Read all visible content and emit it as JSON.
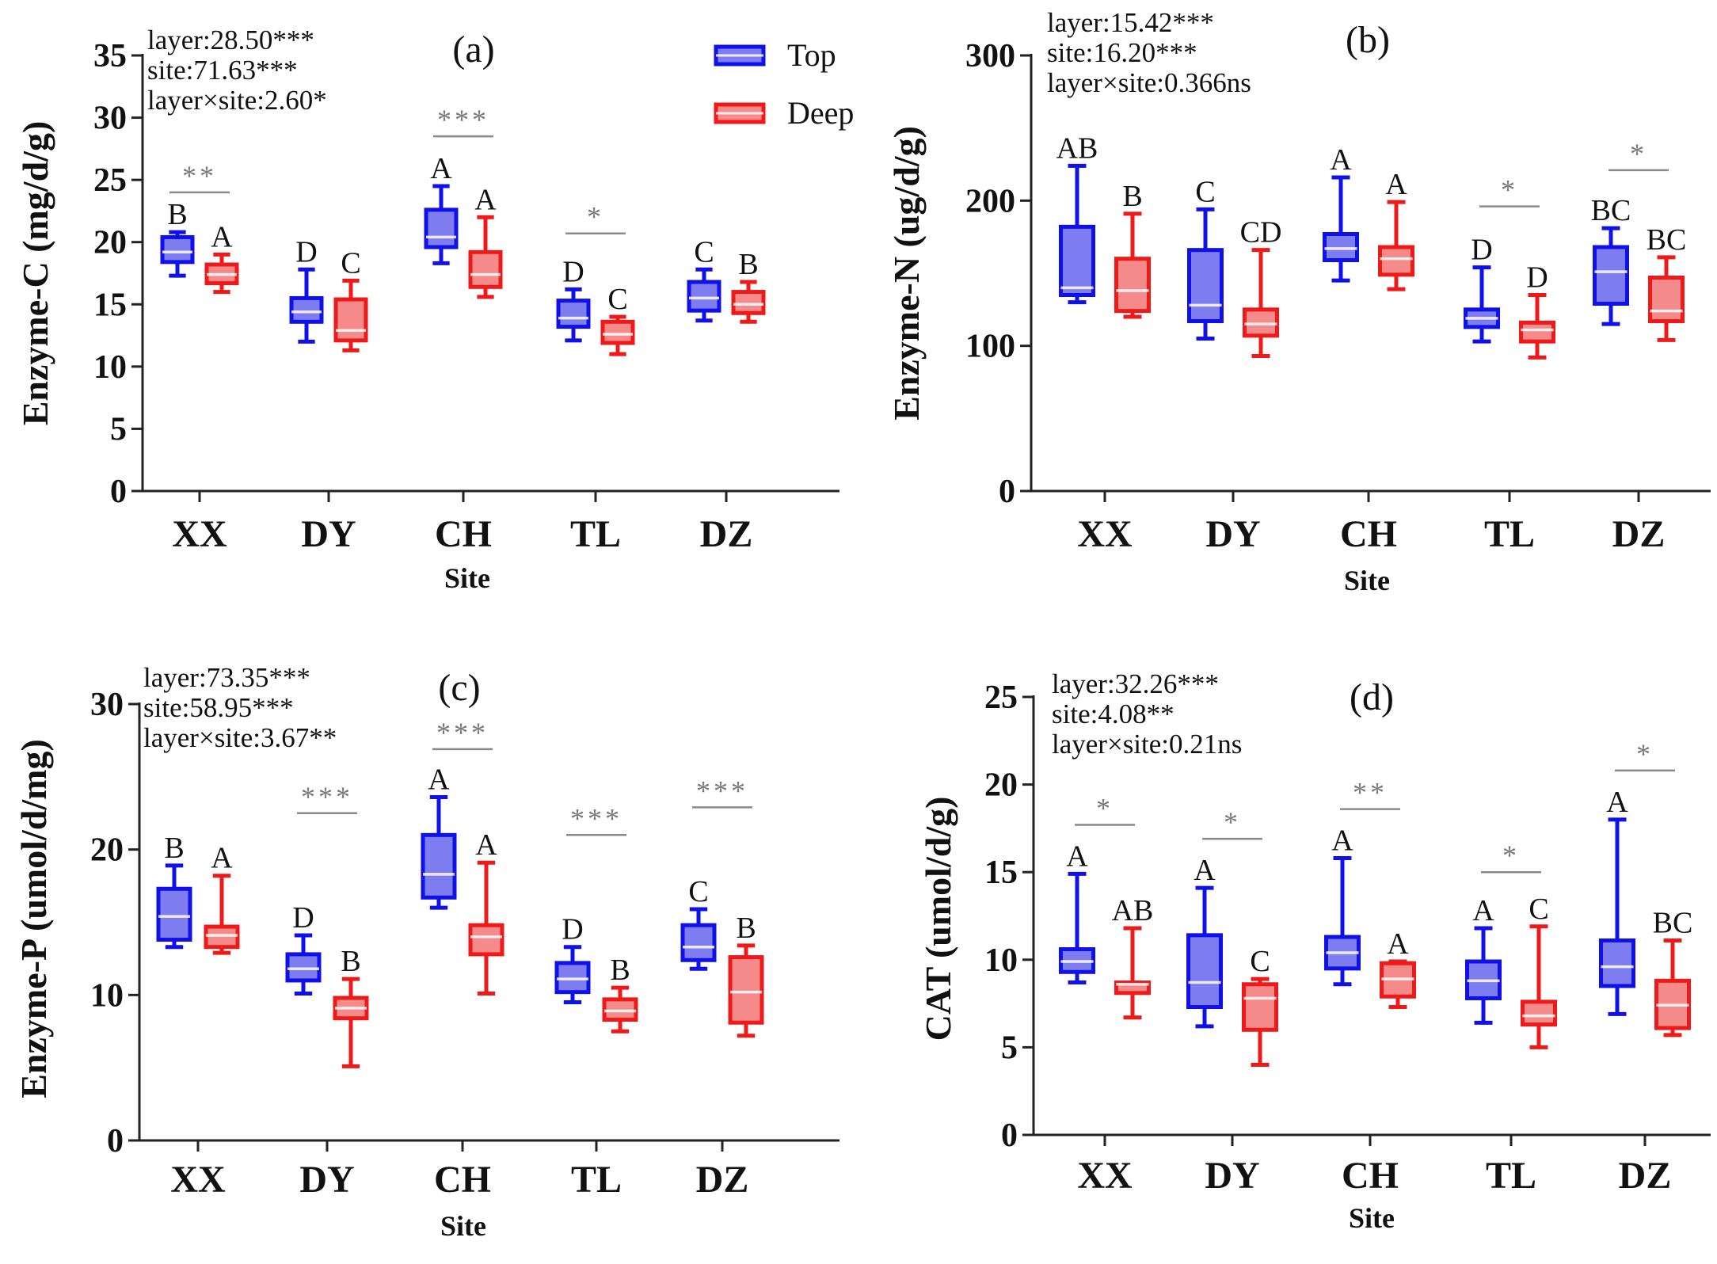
{
  "colors": {
    "top": "#1010e8",
    "top_fill": "#7d7df0",
    "deep": "#ee1a1a",
    "deep_fill": "#f48a8a",
    "sig": "#8a8a8a",
    "axis": "#222222"
  },
  "legend": [
    {
      "name": "Top",
      "color": "#1010e8"
    },
    {
      "name": "Deep",
      "color": "#ee1a1a"
    }
  ],
  "chart_data": [
    {
      "type": "box",
      "panel": "(a)",
      "ylabel": "Enzyme-C (mg/d/g)",
      "xlabel": "Site",
      "ylim": [
        0,
        35
      ],
      "yticks": [
        0,
        5,
        10,
        15,
        20,
        25,
        30,
        35
      ],
      "categories": [
        "XX",
        "DY",
        "CH",
        "TL",
        "DZ"
      ],
      "stats": [
        "layer:28.50***",
        "site:71.63***",
        "layer×site:2.60*"
      ],
      "series": [
        {
          "name": "Top",
          "boxes": [
            {
              "min": 17.3,
              "q1": 18.4,
              "median": 19.2,
              "q3": 20.4,
              "max": 20.8,
              "letter": "B"
            },
            {
              "min": 12.0,
              "q1": 13.6,
              "median": 14.4,
              "q3": 15.5,
              "max": 17.8,
              "letter": "D"
            },
            {
              "min": 18.3,
              "q1": 19.6,
              "median": 20.4,
              "q3": 22.6,
              "max": 24.5,
              "letter": "A"
            },
            {
              "min": 12.1,
              "q1": 13.2,
              "median": 13.9,
              "q3": 15.3,
              "max": 16.2,
              "letter": "D"
            },
            {
              "min": 13.7,
              "q1": 14.5,
              "median": 15.5,
              "q3": 16.8,
              "max": 17.8,
              "letter": "C"
            }
          ]
        },
        {
          "name": "Deep",
          "boxes": [
            {
              "min": 16.0,
              "q1": 16.7,
              "median": 17.4,
              "q3": 18.2,
              "max": 19.0,
              "letter": "A"
            },
            {
              "min": 11.3,
              "q1": 12.1,
              "median": 12.9,
              "q3": 15.4,
              "max": 16.9,
              "letter": "C"
            },
            {
              "min": 15.6,
              "q1": 16.4,
              "median": 17.4,
              "q3": 19.2,
              "max": 22.0,
              "letter": "A"
            },
            {
              "min": 11.0,
              "q1": 11.9,
              "median": 12.6,
              "q3": 13.6,
              "max": 14.0,
              "letter": "C"
            },
            {
              "min": 13.6,
              "q1": 14.3,
              "median": 15.0,
              "q3": 16.0,
              "max": 16.8,
              "letter": "B"
            }
          ]
        }
      ],
      "significance": [
        {
          "site": "XX",
          "y": 24.0,
          "label": "**"
        },
        {
          "site": "CH",
          "y": 28.5,
          "label": "***"
        },
        {
          "site": "TL",
          "y": 20.7,
          "label": "*"
        }
      ]
    },
    {
      "type": "box",
      "panel": "(b)",
      "ylabel": "Enzyme-N (ug/d/g)",
      "xlabel": "Site",
      "ylim": [
        0,
        300
      ],
      "yticks": [
        0,
        100,
        200,
        300
      ],
      "categories": [
        "XX",
        "DY",
        "CH",
        "TL",
        "DZ"
      ],
      "stats": [
        "layer:15.42***",
        "site:16.20***",
        "layer×site:0.366ns"
      ],
      "series": [
        {
          "name": "Top",
          "boxes": [
            {
              "min": 130,
              "q1": 135,
              "median": 140,
              "q3": 182,
              "max": 224,
              "letter": "AB"
            },
            {
              "min": 105,
              "q1": 117,
              "median": 128,
              "q3": 166,
              "max": 194,
              "letter": "C"
            },
            {
              "min": 145,
              "q1": 159,
              "median": 167,
              "q3": 177,
              "max": 216,
              "letter": "A"
            },
            {
              "min": 103,
              "q1": 113,
              "median": 119,
              "q3": 125,
              "max": 154,
              "letter": "D"
            },
            {
              "min": 115,
              "q1": 129,
              "median": 151,
              "q3": 168,
              "max": 181,
              "letter": "BC"
            }
          ]
        },
        {
          "name": "Deep",
          "boxes": [
            {
              "min": 120,
              "q1": 124,
              "median": 138,
              "q3": 160,
              "max": 191,
              "letter": "B"
            },
            {
              "min": 93,
              "q1": 107,
              "median": 115,
              "q3": 125,
              "max": 166,
              "letter": "CD"
            },
            {
              "min": 139,
              "q1": 149,
              "median": 160,
              "q3": 168,
              "max": 199,
              "letter": "A"
            },
            {
              "min": 92,
              "q1": 103,
              "median": 111,
              "q3": 116,
              "max": 135,
              "letter": "D"
            },
            {
              "min": 104,
              "q1": 117,
              "median": 124,
              "q3": 147,
              "max": 161,
              "letter": "BC"
            }
          ]
        }
      ],
      "significance": [
        {
          "site": "TL",
          "y": 196,
          "label": "*"
        },
        {
          "site": "DZ",
          "y": 221,
          "label": "*"
        }
      ]
    },
    {
      "type": "box",
      "panel": "(c)",
      "ylabel": "Enzyme-P (umol/d/mg)",
      "xlabel": "Site",
      "ylim": [
        0,
        30
      ],
      "yticks": [
        0,
        10,
        20,
        30
      ],
      "categories": [
        "XX",
        "DY",
        "CH",
        "TL",
        "DZ"
      ],
      "stats": [
        "layer:73.35***",
        "site:58.95***",
        "layer×site:3.67**"
      ],
      "series": [
        {
          "name": "Top",
          "boxes": [
            {
              "min": 13.3,
              "q1": 13.8,
              "median": 15.4,
              "q3": 17.3,
              "max": 18.9,
              "letter": "B"
            },
            {
              "min": 10.1,
              "q1": 11.0,
              "median": 11.8,
              "q3": 12.8,
              "max": 14.1,
              "letter": "D"
            },
            {
              "min": 16.0,
              "q1": 16.7,
              "median": 18.3,
              "q3": 21.0,
              "max": 23.6,
              "letter": "A"
            },
            {
              "min": 9.5,
              "q1": 10.2,
              "median": 11.1,
              "q3": 12.2,
              "max": 13.3,
              "letter": "D"
            },
            {
              "min": 11.8,
              "q1": 12.4,
              "median": 13.3,
              "q3": 14.8,
              "max": 15.9,
              "letter": "C"
            }
          ]
        },
        {
          "name": "Deep",
          "boxes": [
            {
              "min": 12.9,
              "q1": 13.3,
              "median": 14.1,
              "q3": 14.7,
              "max": 18.2,
              "letter": "A"
            },
            {
              "min": 5.1,
              "q1": 8.4,
              "median": 9.1,
              "q3": 9.8,
              "max": 11.1,
              "letter": "B"
            },
            {
              "min": 10.1,
              "q1": 12.8,
              "median": 14.0,
              "q3": 14.8,
              "max": 19.1,
              "letter": "A"
            },
            {
              "min": 7.5,
              "q1": 8.3,
              "median": 8.9,
              "q3": 9.7,
              "max": 10.5,
              "letter": "B"
            },
            {
              "min": 7.2,
              "q1": 8.1,
              "median": 10.2,
              "q3": 12.6,
              "max": 13.4,
              "letter": "B"
            }
          ]
        }
      ],
      "significance": [
        {
          "site": "DY",
          "y": 22.5,
          "label": "***"
        },
        {
          "site": "CH",
          "y": 26.9,
          "label": "***"
        },
        {
          "site": "TL",
          "y": 21.0,
          "label": "***"
        },
        {
          "site": "DZ",
          "y": 22.9,
          "label": "***"
        }
      ]
    },
    {
      "type": "box",
      "panel": "(d)",
      "ylabel": "CAT (umol/d/g)",
      "xlabel": "Site",
      "ylim": [
        0,
        25
      ],
      "yticks": [
        0,
        5,
        10,
        15,
        20,
        25
      ],
      "categories": [
        "XX",
        "DY",
        "CH",
        "TL",
        "DZ"
      ],
      "stats": [
        "layer:32.26***",
        "site:4.08**",
        "layer×site:0.21ns"
      ],
      "series": [
        {
          "name": "Top",
          "boxes": [
            {
              "min": 8.7,
              "q1": 9.3,
              "median": 9.9,
              "q3": 10.6,
              "max": 14.9,
              "letter": "A"
            },
            {
              "min": 6.2,
              "q1": 7.3,
              "median": 8.7,
              "q3": 11.4,
              "max": 14.1,
              "letter": "A"
            },
            {
              "min": 8.6,
              "q1": 9.5,
              "median": 10.4,
              "q3": 11.3,
              "max": 15.8,
              "letter": "A"
            },
            {
              "min": 6.4,
              "q1": 7.8,
              "median": 8.8,
              "q3": 9.9,
              "max": 11.8,
              "letter": "A"
            },
            {
              "min": 6.9,
              "q1": 8.5,
              "median": 9.6,
              "q3": 11.1,
              "max": 18.0,
              "letter": "A"
            }
          ]
        },
        {
          "name": "Deep",
          "boxes": [
            {
              "min": 6.7,
              "q1": 8.1,
              "median": 8.6,
              "q3": 8.7,
              "max": 11.8,
              "letter": "AB"
            },
            {
              "min": 4.0,
              "q1": 6.0,
              "median": 7.8,
              "q3": 8.6,
              "max": 8.9,
              "letter": "C"
            },
            {
              "min": 7.3,
              "q1": 7.9,
              "median": 8.9,
              "q3": 9.8,
              "max": 9.9,
              "letter": "A"
            },
            {
              "min": 5.0,
              "q1": 6.3,
              "median": 6.8,
              "q3": 7.6,
              "max": 11.9,
              "letter": "C"
            },
            {
              "min": 5.7,
              "q1": 6.1,
              "median": 7.4,
              "q3": 8.8,
              "max": 11.1,
              "letter": "BC"
            }
          ]
        }
      ],
      "significance": [
        {
          "site": "XX",
          "y": 17.7,
          "label": "*"
        },
        {
          "site": "DY",
          "y": 16.9,
          "label": "*"
        },
        {
          "site": "CH",
          "y": 18.6,
          "label": "**"
        },
        {
          "site": "TL",
          "y": 15.0,
          "label": "*"
        },
        {
          "site": "DZ",
          "y": 20.8,
          "label": "*"
        }
      ]
    }
  ]
}
